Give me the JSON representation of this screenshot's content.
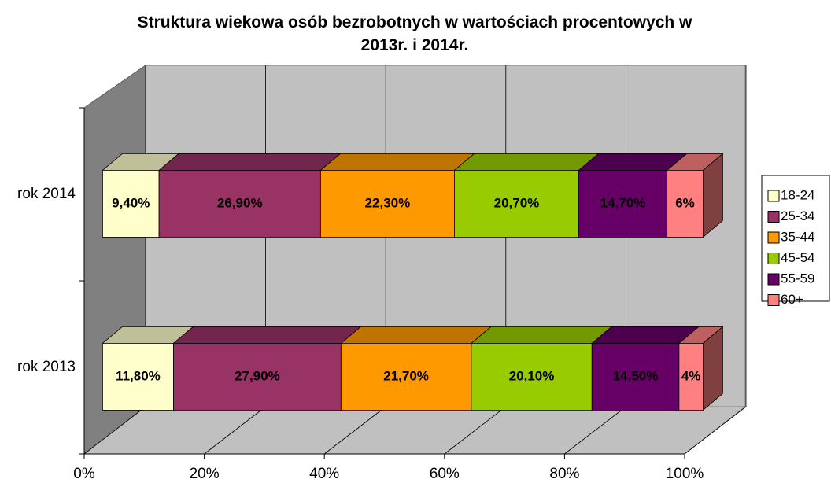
{
  "chart_data": {
    "type": "bar3d_stacked_horizontal",
    "title": "Struktura wiekowa osób bezrobotnych w wartościach procentowych w 2013r. i 2014r.",
    "categories": [
      "rok 2014",
      "rok 2013"
    ],
    "series": [
      {
        "name": "18-24",
        "color": "#FFFFCC",
        "values": [
          9.4,
          11.8
        ],
        "value_labels": [
          "9,40%",
          "11,80%"
        ]
      },
      {
        "name": "25-34",
        "color": "#993366",
        "values": [
          26.9,
          27.9
        ],
        "value_labels": [
          "26,90%",
          "27,90%"
        ]
      },
      {
        "name": "35-44",
        "color": "#FF9900",
        "values": [
          22.3,
          21.7
        ],
        "value_labels": [
          "22,30%",
          "21,70%"
        ]
      },
      {
        "name": "45-54",
        "color": "#99CC00",
        "values": [
          20.7,
          20.1
        ],
        "value_labels": [
          "20,70%",
          "20,10%"
        ]
      },
      {
        "name": "55-59",
        "color": "#660066",
        "values": [
          14.7,
          14.5
        ],
        "value_labels": [
          "14,70%",
          "14,50%"
        ]
      },
      {
        "name": "60+",
        "color": "#FF8080",
        "values": [
          6,
          4
        ],
        "value_labels": [
          "6%",
          "4%"
        ]
      }
    ],
    "xlim": [
      0,
      100
    ],
    "xticks": [
      {
        "value": 0,
        "label": "0%"
      },
      {
        "value": 20,
        "label": "20%"
      },
      {
        "value": 40,
        "label": "40%"
      },
      {
        "value": 60,
        "label": "60%"
      },
      {
        "value": 80,
        "label": "80%"
      },
      {
        "value": 100,
        "label": "100%"
      }
    ],
    "grid": true,
    "legend": "right"
  }
}
